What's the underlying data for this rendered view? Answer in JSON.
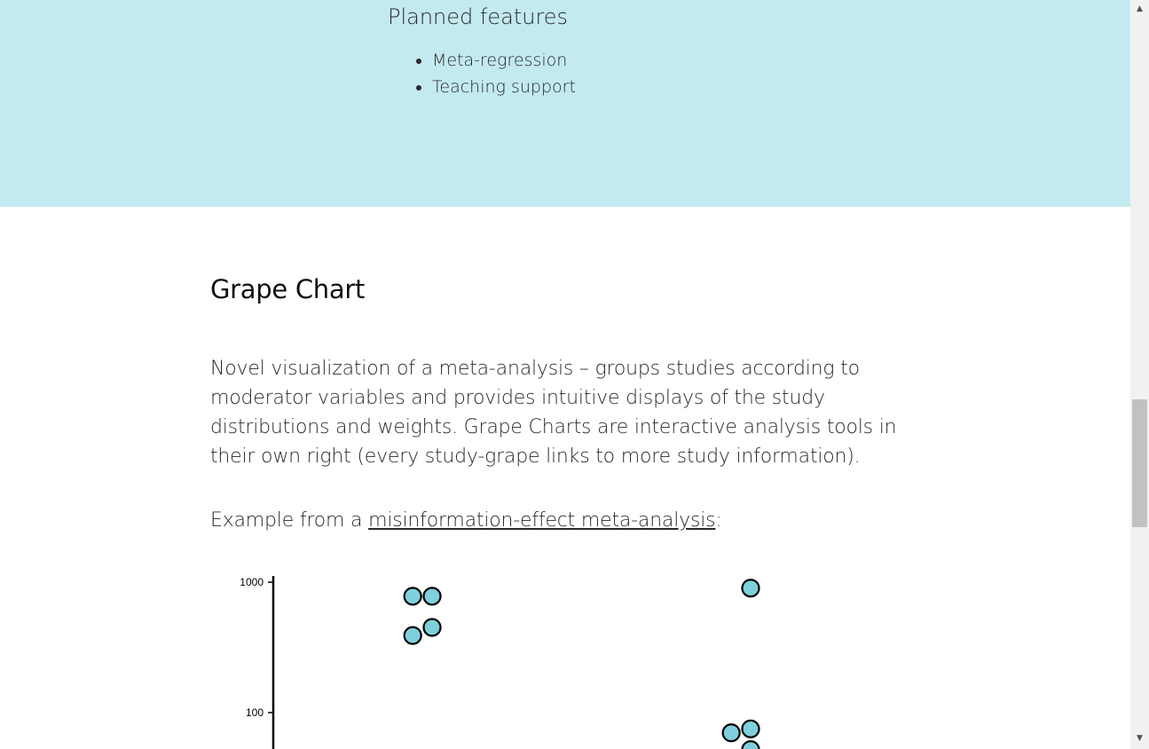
{
  "planned": {
    "heading": "Planned features",
    "items": [
      "Meta-regression",
      "Teaching support"
    ]
  },
  "grape": {
    "heading": "Grape Chart",
    "description": "Novel visualization of a meta-analysis – groups studies according to moderator variables and provides intuitive displays of the study distributions and weights. Grape Charts are interactive analysis tools in their own right (every study-grape links to more study information).",
    "example_prefix": "Example from a ",
    "example_link": "misinformation-effect meta-analysis",
    "example_suffix": ":"
  },
  "colors": {
    "band_bg": "#c2eaf0",
    "grape_fill": "#7fd0dc"
  },
  "chart_data": {
    "type": "scatter",
    "yscale": "log",
    "ylim": [
      45,
      1000
    ],
    "yticks": [
      1000,
      100
    ],
    "ytick_labels": [
      "1000",
      "100"
    ],
    "groups": [
      {
        "points": [
          780,
          780,
          450,
          390
        ]
      },
      {
        "points": [
          900,
          75,
          70,
          52
        ]
      }
    ]
  },
  "scrollbar": {
    "up_icon": "arrow-up-icon",
    "down_icon": "arrow-down-icon",
    "position": 0.56
  }
}
